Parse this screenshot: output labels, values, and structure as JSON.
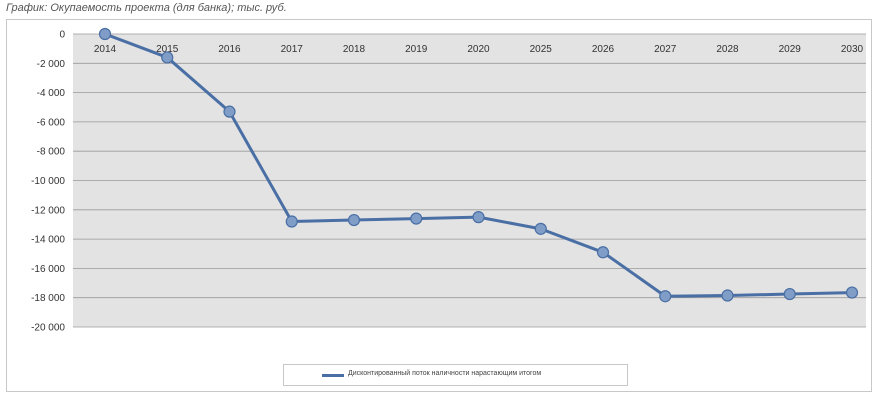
{
  "caption": "График: Окупаемость проекта (для банка); тыс. руб.",
  "chart_data": {
    "type": "line",
    "title": "График: Окупаемость проекта (для банка); тыс. руб.",
    "categories": [
      "2014",
      "2015",
      "2016",
      "2017",
      "2018",
      "2019",
      "2020",
      "2025",
      "2026",
      "2027",
      "2028",
      "2029",
      "2030"
    ],
    "series": [
      {
        "name": "Дисконтированный поток наличности нарастающим итогом",
        "values": [
          0,
          -1600,
          -5300,
          -12800,
          -12700,
          -12600,
          -12500,
          -13300,
          -14900,
          -17900,
          -17850,
          -17750,
          -17650
        ],
        "color": "#4a6fa5"
      }
    ],
    "y_ticks": [
      "0",
      "-2 000",
      "-4 000",
      "-6 000",
      "-8 000",
      "-10 000",
      "-12 000",
      "-14 000",
      "-16 000",
      "-18 000",
      "-20 000"
    ],
    "ylim": [
      -20000,
      0
    ],
    "grid": true,
    "plot_background": "#e3e3e3",
    "marker_color": "#7f9dc6",
    "legend_position": "bottom"
  }
}
